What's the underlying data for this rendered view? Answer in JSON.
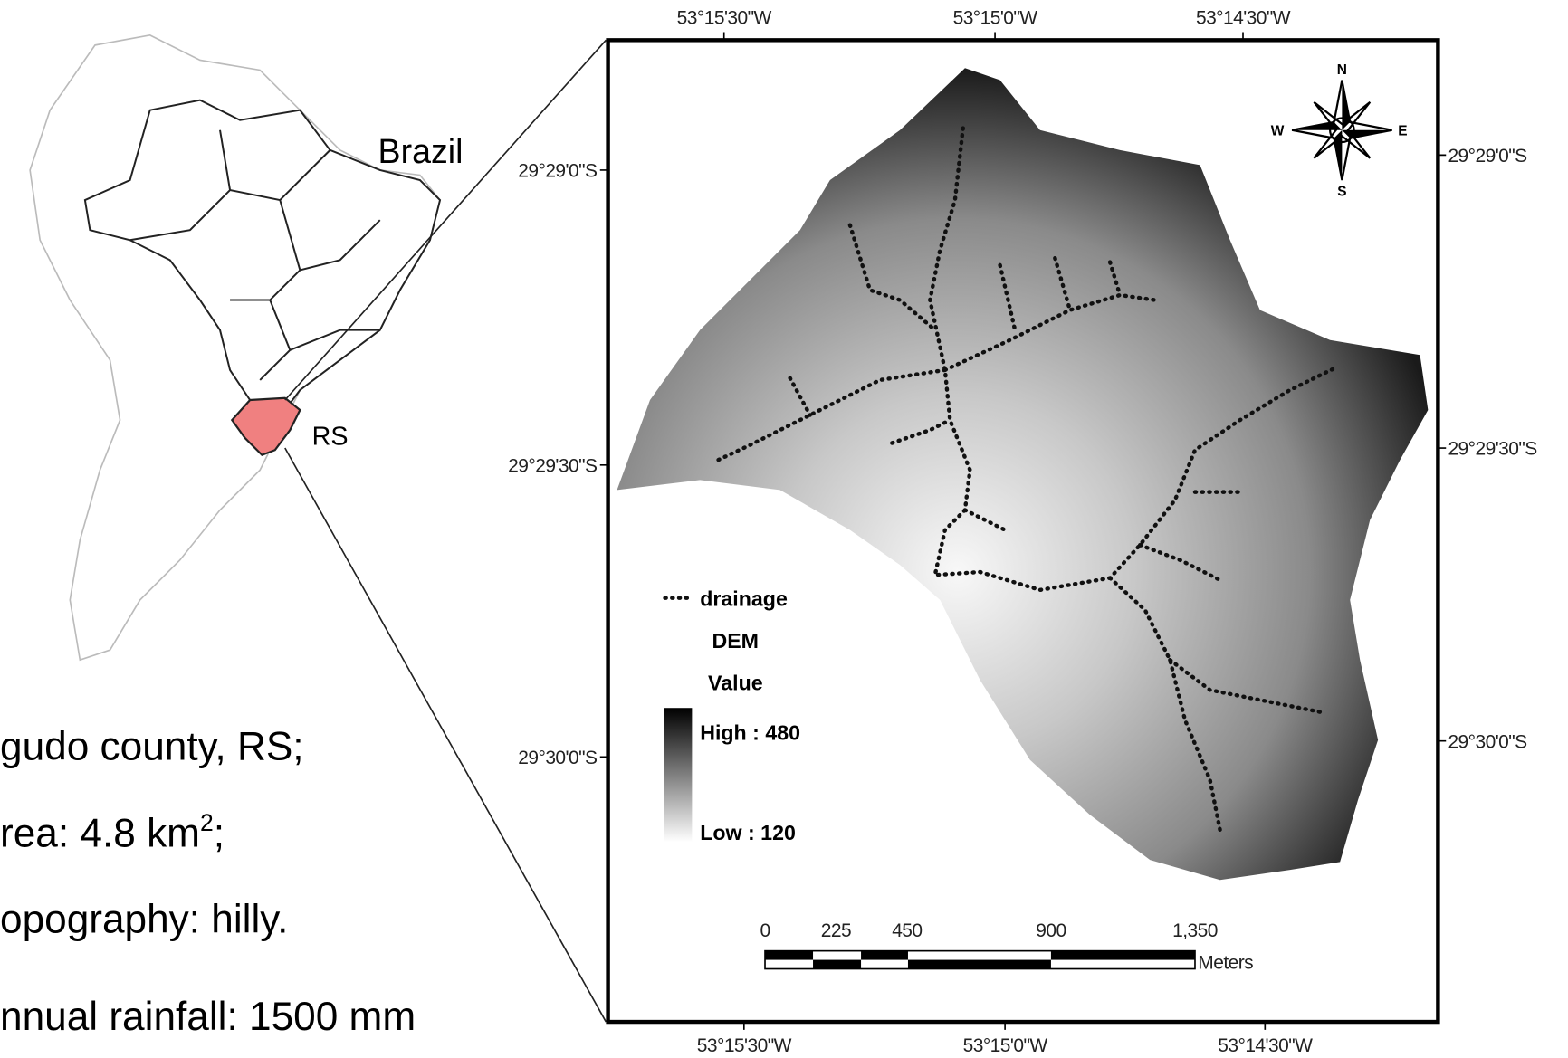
{
  "inset": {
    "country_label": "Brazil",
    "state_label": "RS"
  },
  "notes": [
    {
      "text": "gudo county, RS;"
    },
    {
      "text": "rea: 4.8 km",
      "superscript": "2",
      "suffix": ";"
    },
    {
      "text": "opography: hilly."
    },
    {
      "text": "nnual rainfall: 1500 mm"
    }
  ],
  "map": {
    "longitude_ticks": [
      "53°15'30\"W",
      "53°15'0\"W",
      "53°14'30\"W"
    ],
    "latitude_ticks": [
      "29°29'0\"S",
      "29°29'30\"S",
      "29°30'0\"S"
    ],
    "compass": {
      "north": "N",
      "east": "E",
      "south": "S",
      "west": "W"
    },
    "legend": {
      "drainage": "drainage",
      "dem": "DEM",
      "value": "Value",
      "high": "High : 480",
      "low": "Low : 120"
    },
    "scale_bar": {
      "labels": [
        "0",
        "225",
        "450",
        "900",
        "1,350"
      ],
      "unit": "Meters"
    }
  }
}
